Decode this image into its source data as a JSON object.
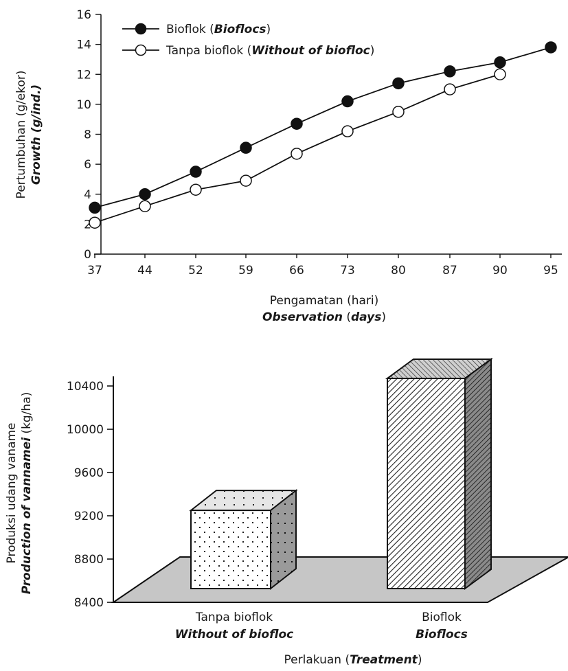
{
  "chart_data": [
    {
      "type": "line",
      "x": [
        37,
        44,
        52,
        59,
        66,
        73,
        80,
        87,
        90,
        95
      ],
      "ylim": [
        0,
        16
      ],
      "y_ticks": [
        "0",
        "2",
        "4",
        "6",
        "8",
        "10",
        "12",
        "14",
        "16"
      ],
      "x_ticks": [
        "37",
        "44",
        "52",
        "59",
        "66",
        "73",
        "80",
        "87",
        "90",
        "95"
      ],
      "ylabel": "Pertumbuhan (g/ekor)",
      "ylabel_en": "Growth (g/ind.)",
      "xlabel": "Pengamatan (hari)",
      "xlabel_en_1": "Observation",
      "xlabel_en_2": "(",
      "xlabel_en_3": "days",
      "xlabel_en_4": ")",
      "legend_position": "top-left",
      "grid": false,
      "series": [
        {
          "name": "Bioflok",
          "name_en": "Bioflocs",
          "marker": "filled-circle",
          "values": [
            3.1,
            4.0,
            5.5,
            7.1,
            8.7,
            10.2,
            11.4,
            12.2,
            12.8,
            13.8
          ]
        },
        {
          "name": "Tanpa bioflok",
          "name_en": "Without of biofloc",
          "marker": "open-circle",
          "values": [
            2.1,
            3.2,
            4.3,
            4.9,
            6.7,
            8.2,
            9.5,
            11.0,
            12.0,
            null
          ]
        }
      ]
    },
    {
      "type": "bar",
      "style": "3d",
      "categories": [
        "Tanpa bioflok",
        "Bioflok"
      ],
      "categories_en": [
        "Without of biofloc",
        "Bioflocs"
      ],
      "values": [
        9250,
        10470
      ],
      "ylim": [
        8400,
        10400
      ],
      "y_ticks": [
        "8400",
        "8800",
        "9200",
        "9600",
        "10000",
        "10400"
      ],
      "ylabel": "Produksi udang vaname",
      "ylabel_en": "Production of vannamei",
      "ylabel_unit": "(kg/ha)",
      "xlabel": "Perlakuan (",
      "xlabel_en": "Treatment",
      "xlabel_close": ")",
      "grid": false
    }
  ]
}
